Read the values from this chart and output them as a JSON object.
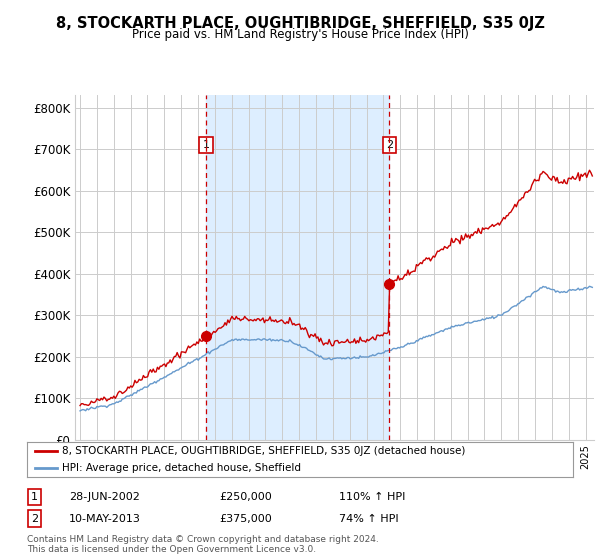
{
  "title": "8, STOCKARTH PLACE, OUGHTIBRIDGE, SHEFFIELD, S35 0JZ",
  "subtitle": "Price paid vs. HM Land Registry's House Price Index (HPI)",
  "ylabel_ticks": [
    "£0",
    "£100K",
    "£200K",
    "£300K",
    "£400K",
    "£500K",
    "£600K",
    "£700K",
    "£800K"
  ],
  "ytick_values": [
    0,
    100000,
    200000,
    300000,
    400000,
    500000,
    600000,
    700000,
    800000
  ],
  "ylim": [
    0,
    830000
  ],
  "xlim_left": 1994.7,
  "xlim_right": 2025.5,
  "sale1": {
    "date_num": 2002.49,
    "price": 250000,
    "label": "1",
    "date_str": "28-JUN-2002",
    "hpi_pct": "110% ↑ HPI"
  },
  "sale2": {
    "date_num": 2013.36,
    "price": 375000,
    "label": "2",
    "date_str": "10-MAY-2013",
    "hpi_pct": "74% ↑ HPI"
  },
  "legend_line1": "8, STOCKARTH PLACE, OUGHTIBRIDGE, SHEFFIELD, S35 0JZ (detached house)",
  "legend_line2": "HPI: Average price, detached house, Sheffield",
  "footer1": "Contains HM Land Registry data © Crown copyright and database right 2024.",
  "footer2": "This data is licensed under the Open Government Licence v3.0.",
  "sale_color": "#cc0000",
  "hpi_color": "#6699cc",
  "shade_color": "#ddeeff",
  "vline_color": "#cc0000",
  "grid_color": "#cccccc",
  "background": "#ffffff"
}
